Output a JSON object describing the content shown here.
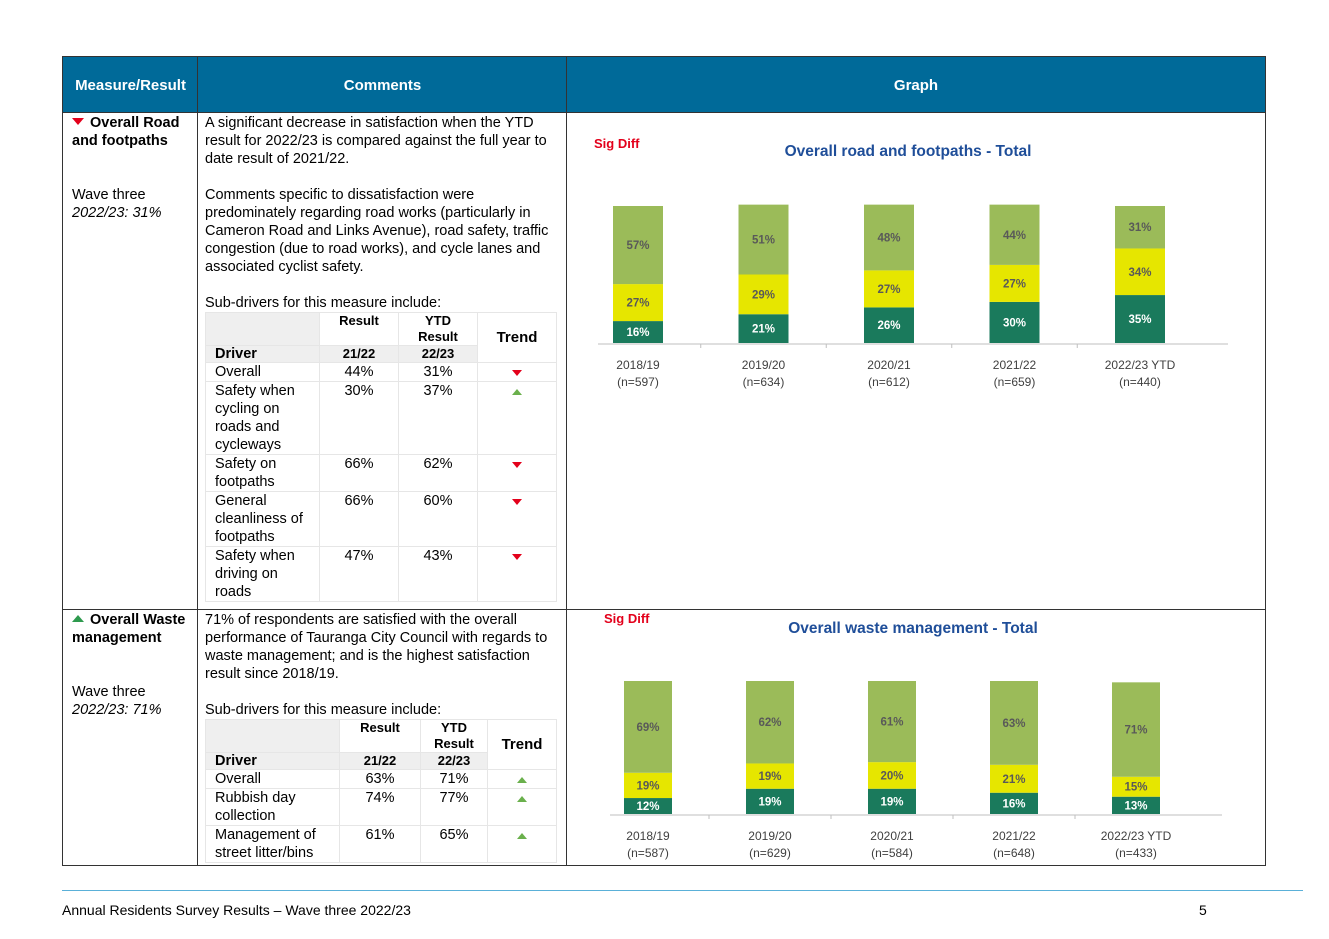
{
  "header": {
    "measure": "Measure/Result",
    "comments": "Comments",
    "graph": "Graph"
  },
  "rows": [
    {
      "measure_title": "Overall Road and footpaths",
      "trend": "down",
      "wave_label": "Wave three",
      "wave_value": "2022/23: 31%",
      "comments": [
        "A significant decrease in satisfaction when the YTD result for 2022/23 is compared against the full year to date result of 2021/22.",
        "Comments specific to dissatisfaction were predominately regarding road works (particularly in Cameron Road and Links Avenue), road safety, traffic congestion (due to road works), and cycle lanes and associated cyclist safety.",
        "Sub-drivers for this measure include:"
      ],
      "table": {
        "col_result": "Result",
        "col_ytd": "YTD Result",
        "col_trend": "Trend",
        "col_driver": "Driver",
        "col_y1": "21/22",
        "col_y2": "22/23",
        "rows": [
          {
            "driver": "Overall",
            "r": "44%",
            "ytd": "31%",
            "trend": "down"
          },
          {
            "driver": "Safety when cycling on roads and cycleways",
            "r": "30%",
            "ytd": "37%",
            "trend": "up"
          },
          {
            "driver": "Safety on footpaths",
            "r": "66%",
            "ytd": "62%",
            "trend": "down"
          },
          {
            "driver": "General cleanliness of footpaths",
            "r": "66%",
            "ytd": "60%",
            "trend": "down"
          },
          {
            "driver": "Safety when driving on roads",
            "r": "47%",
            "ytd": "43%",
            "trend": "down"
          }
        ]
      }
    },
    {
      "measure_title": "Overall Waste management",
      "trend": "up",
      "wave_label": "Wave three",
      "wave_value": "2022/23: 71%",
      "comments": [
        "71% of respondents are satisfied with the overall performance of Tauranga City Council with regards to waste management; and is the highest satisfaction result since 2018/19.",
        "Sub-drivers for this measure include:"
      ],
      "table": {
        "col_result": "Result",
        "col_ytd": "YTD Result",
        "col_trend": "Trend",
        "col_driver": "Driver",
        "col_y1": "21/22",
        "col_y2": "22/23",
        "rows": [
          {
            "driver": "Overall",
            "r": "63%",
            "ytd": "71%",
            "trend": "up"
          },
          {
            "driver": "Rubbish day collection",
            "r": "74%",
            "ytd": "77%",
            "trend": "up"
          },
          {
            "driver": "Management of street litter/bins",
            "r": "61%",
            "ytd": "65%",
            "trend": "up"
          }
        ]
      }
    }
  ],
  "colors": {
    "header": "#006a99",
    "light_green": "#9bbb59",
    "yellow": "#e6e600",
    "dark_green": "#1a7a5c",
    "sig_diff": "#e3001b",
    "title_blue": "#1f4e99"
  },
  "chart_data": [
    {
      "type": "bar",
      "stacked": true,
      "title": "Overall road and footpaths - Total",
      "annotation": "Sig Diff",
      "categories": [
        "2018/19",
        "2019/20",
        "2020/21",
        "2021/22",
        "2022/23 YTD"
      ],
      "category_n": [
        "(n=597)",
        "(n=634)",
        "(n=612)",
        "(n=659)",
        "(n=440)"
      ],
      "series": [
        {
          "values": [
            16,
            21,
            26,
            30,
            35
          ],
          "color": "#1a7a5c"
        },
        {
          "values": [
            27,
            29,
            27,
            27,
            34
          ],
          "color": "#e6e600"
        },
        {
          "values": [
            57,
            51,
            48,
            44,
            31
          ],
          "color": "#9bbb59"
        }
      ]
    },
    {
      "type": "bar",
      "stacked": true,
      "title": "Overall waste management - Total",
      "annotation": "Sig Diff",
      "categories": [
        "2018/19",
        "2019/20",
        "2020/21",
        "2021/22",
        "2022/23 YTD"
      ],
      "category_n": [
        "(n=587)",
        "(n=629)",
        "(n=584)",
        "(n=648)",
        "(n=433)"
      ],
      "series": [
        {
          "values": [
            12,
            19,
            19,
            16,
            13
          ],
          "color": "#1a7a5c"
        },
        {
          "values": [
            19,
            19,
            20,
            21,
            15
          ],
          "color": "#e6e600"
        },
        {
          "values": [
            69,
            62,
            61,
            63,
            71
          ],
          "color": "#9bbb59"
        }
      ]
    }
  ],
  "footer": {
    "left": "Annual Residents Survey Results – Wave three 2022/23",
    "page": "5"
  }
}
